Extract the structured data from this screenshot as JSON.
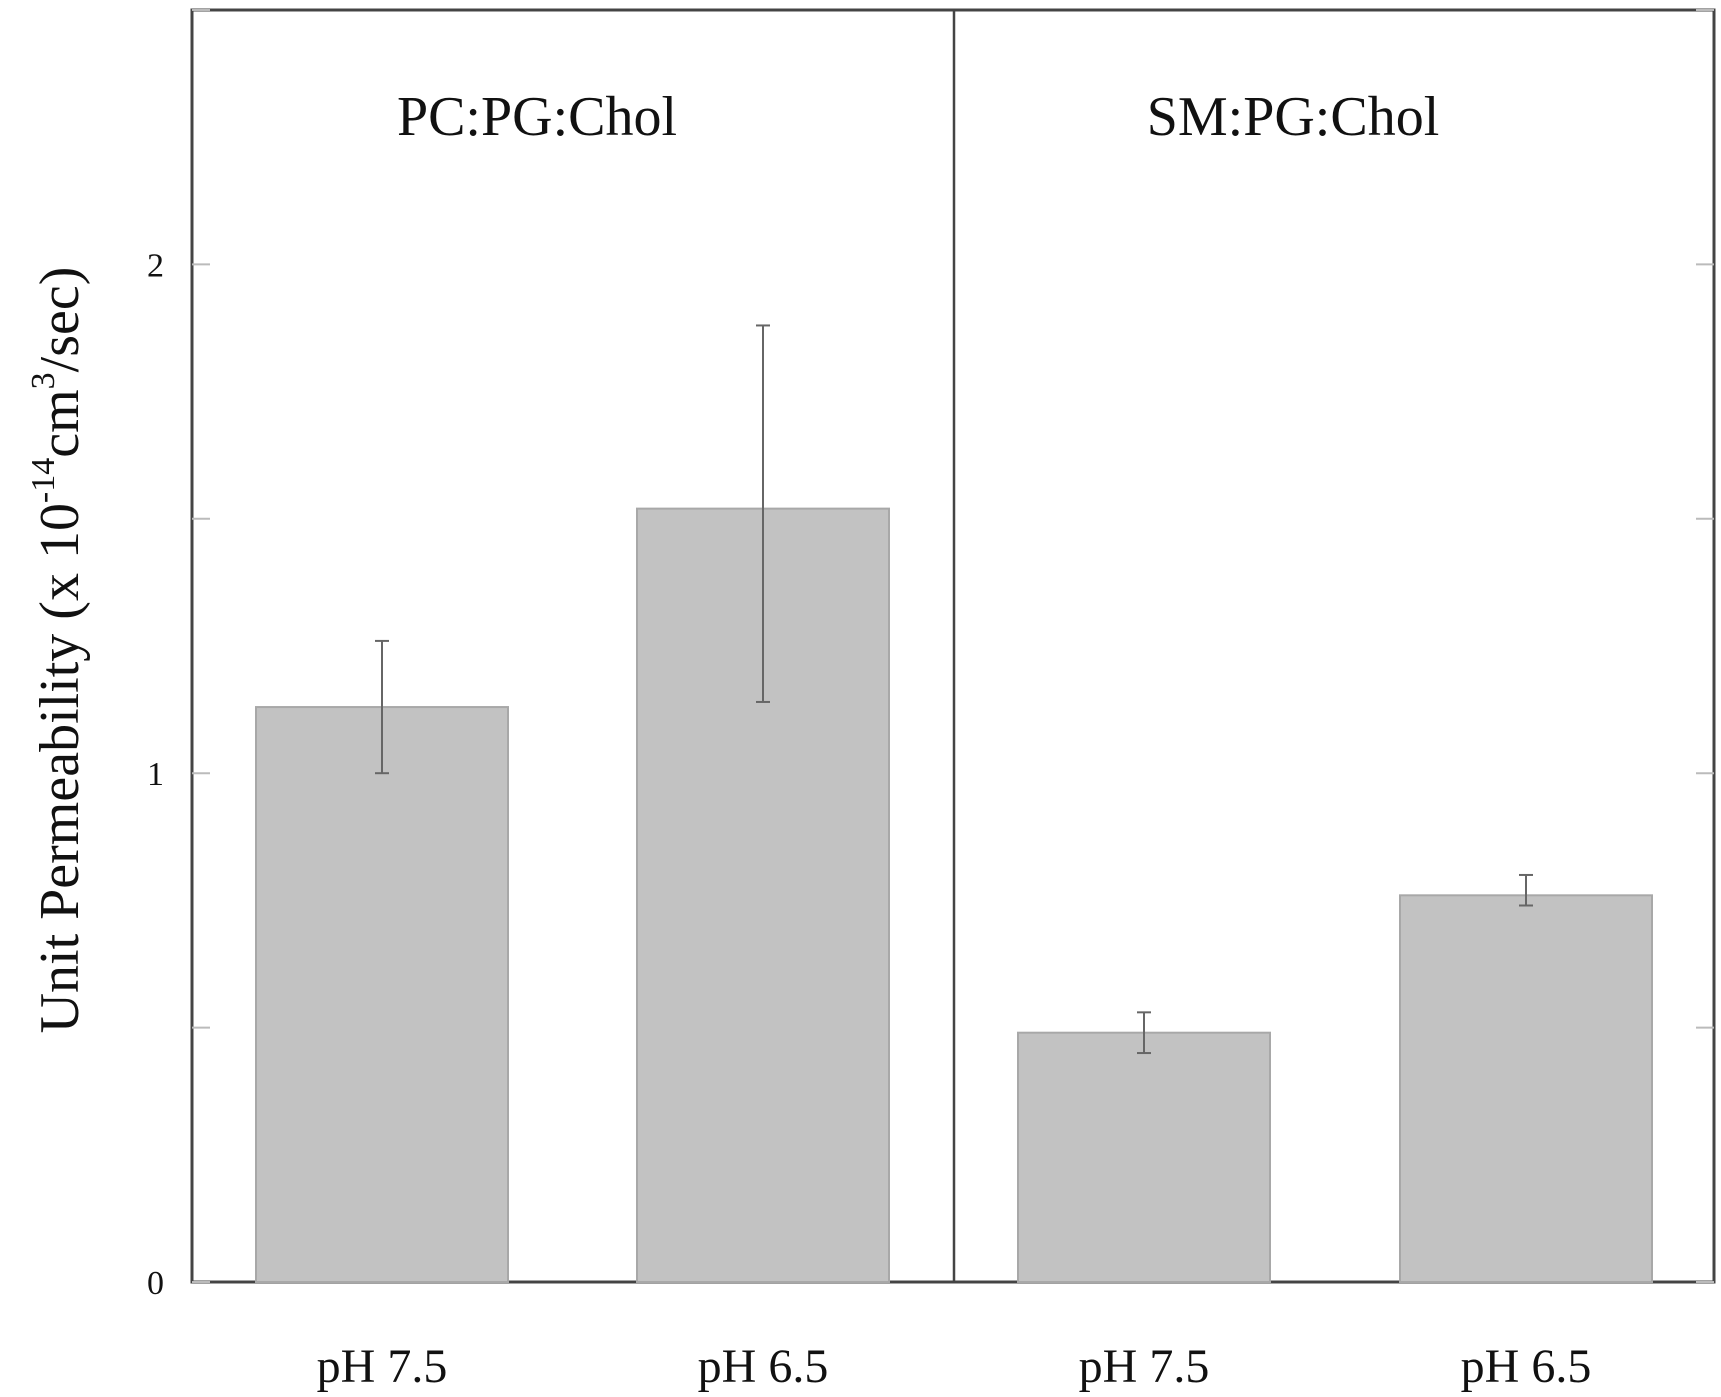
{
  "chart_data": {
    "type": "bar",
    "groups": [
      {
        "label": "PC:PG:Chol",
        "categories": [
          "pH 7.5",
          "pH 6.5"
        ],
        "values": [
          1.13,
          1.52
        ],
        "error_low": [
          1.0,
          1.14
        ],
        "error_high": [
          1.26,
          1.88
        ]
      },
      {
        "label": "SM:PG:Chol",
        "categories": [
          "pH 7.5",
          "pH 6.5"
        ],
        "values": [
          0.49,
          0.76
        ],
        "error_low": [
          0.45,
          0.74
        ],
        "error_high": [
          0.53,
          0.8
        ]
      }
    ],
    "yticks": [
      "0",
      "1",
      "2"
    ],
    "ylim": [
      0,
      2.5
    ],
    "ylabel": {
      "prefix": "Unit Permeability  (x 10",
      "sup1": "-14",
      "mid": "cm",
      "sup2": "3",
      "suffix": "/sec)"
    },
    "grid": false,
    "legend": "none",
    "colors": {
      "bar_fill": "#c2c2c2",
      "bar_edge": "#a8a8a8",
      "axis": "#444444",
      "error": "#666666"
    }
  }
}
